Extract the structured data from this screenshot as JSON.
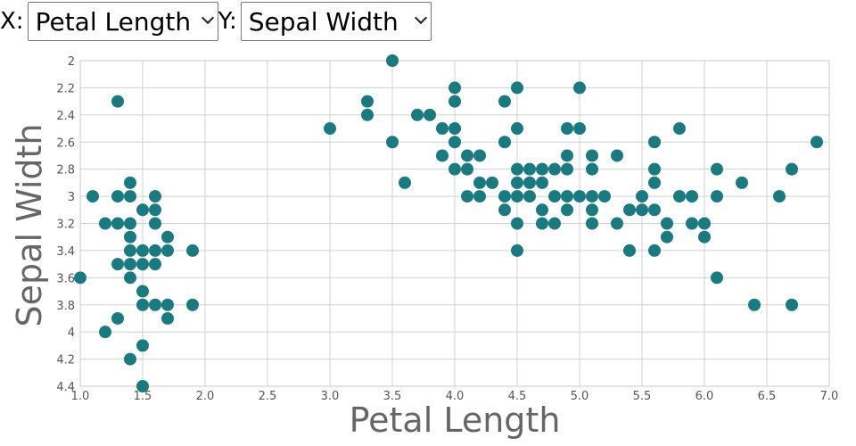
{
  "controls": {
    "x_label": "X:",
    "x_selected": "Petal Length",
    "y_label": "Y:",
    "y_selected": "Sepal Width"
  },
  "chart_data": {
    "type": "scatter",
    "xlabel": "Petal Length",
    "ylabel": "Sepal Width",
    "xlim": [
      1.0,
      7.0
    ],
    "ylim": [
      2.0,
      4.4
    ],
    "y_inverted": true,
    "grid": true,
    "point_color": "#1a7a80",
    "x_ticks": [
      "1.0",
      "1.5",
      "2.0",
      "2.5",
      "3.0",
      "3.5",
      "4.0",
      "4.5",
      "5.0",
      "5.5",
      "6.0",
      "6.5",
      "7.0"
    ],
    "y_ticks": [
      "2",
      "2.2",
      "2.4",
      "2.6",
      "2.8",
      "3",
      "3.2",
      "3.4",
      "3.6",
      "3.8",
      "4",
      "4.2",
      "4.4"
    ],
    "points": [
      [
        1.0,
        3.6
      ],
      [
        1.1,
        3.0
      ],
      [
        1.2,
        3.2
      ],
      [
        1.2,
        4.0
      ],
      [
        1.3,
        2.3
      ],
      [
        1.3,
        3.0
      ],
      [
        1.3,
        3.2
      ],
      [
        1.3,
        3.5
      ],
      [
        1.3,
        3.9
      ],
      [
        1.4,
        2.9
      ],
      [
        1.4,
        3.0
      ],
      [
        1.4,
        3.2
      ],
      [
        1.4,
        3.3
      ],
      [
        1.4,
        3.4
      ],
      [
        1.4,
        3.5
      ],
      [
        1.4,
        3.6
      ],
      [
        1.4,
        4.2
      ],
      [
        1.5,
        3.1
      ],
      [
        1.5,
        3.4
      ],
      [
        1.5,
        3.5
      ],
      [
        1.5,
        3.7
      ],
      [
        1.5,
        3.8
      ],
      [
        1.5,
        4.1
      ],
      [
        1.5,
        4.4
      ],
      [
        1.6,
        3.0
      ],
      [
        1.6,
        3.1
      ],
      [
        1.6,
        3.2
      ],
      [
        1.6,
        3.4
      ],
      [
        1.6,
        3.5
      ],
      [
        1.6,
        3.8
      ],
      [
        1.7,
        3.3
      ],
      [
        1.7,
        3.4
      ],
      [
        1.7,
        3.8
      ],
      [
        1.7,
        3.9
      ],
      [
        1.9,
        3.4
      ],
      [
        1.9,
        3.8
      ],
      [
        3.0,
        2.5
      ],
      [
        3.3,
        2.3
      ],
      [
        3.3,
        2.4
      ],
      [
        3.5,
        2.0
      ],
      [
        3.5,
        2.6
      ],
      [
        3.6,
        2.9
      ],
      [
        3.7,
        2.4
      ],
      [
        3.8,
        2.4
      ],
      [
        3.9,
        2.5
      ],
      [
        3.9,
        2.7
      ],
      [
        4.0,
        2.2
      ],
      [
        4.0,
        2.3
      ],
      [
        4.0,
        2.5
      ],
      [
        4.0,
        2.6
      ],
      [
        4.0,
        2.8
      ],
      [
        4.1,
        2.7
      ],
      [
        4.1,
        2.8
      ],
      [
        4.1,
        3.0
      ],
      [
        4.2,
        2.7
      ],
      [
        4.2,
        2.9
      ],
      [
        4.2,
        3.0
      ],
      [
        4.3,
        2.9
      ],
      [
        4.4,
        2.3
      ],
      [
        4.4,
        2.6
      ],
      [
        4.4,
        3.0
      ],
      [
        4.4,
        3.1
      ],
      [
        4.5,
        2.2
      ],
      [
        4.5,
        2.5
      ],
      [
        4.5,
        2.8
      ],
      [
        4.5,
        2.9
      ],
      [
        4.5,
        3.0
      ],
      [
        4.5,
        3.2
      ],
      [
        4.5,
        3.4
      ],
      [
        4.6,
        2.8
      ],
      [
        4.6,
        2.9
      ],
      [
        4.6,
        3.0
      ],
      [
        4.7,
        2.8
      ],
      [
        4.7,
        3.1
      ],
      [
        4.7,
        3.2
      ],
      [
        4.7,
        2.9
      ],
      [
        4.8,
        2.8
      ],
      [
        4.8,
        3.0
      ],
      [
        4.8,
        3.2
      ],
      [
        4.9,
        2.5
      ],
      [
        4.9,
        2.7
      ],
      [
        4.9,
        2.8
      ],
      [
        4.9,
        3.0
      ],
      [
        4.9,
        3.1
      ],
      [
        5.0,
        2.2
      ],
      [
        5.0,
        2.5
      ],
      [
        5.0,
        3.0
      ],
      [
        5.1,
        2.7
      ],
      [
        5.1,
        2.8
      ],
      [
        5.1,
        3.0
      ],
      [
        5.1,
        3.1
      ],
      [
        5.1,
        3.2
      ],
      [
        5.2,
        3.0
      ],
      [
        5.3,
        2.7
      ],
      [
        5.3,
        3.2
      ],
      [
        5.4,
        3.1
      ],
      [
        5.4,
        3.4
      ],
      [
        5.5,
        3.0
      ],
      [
        5.5,
        3.1
      ],
      [
        5.6,
        2.6
      ],
      [
        5.6,
        2.8
      ],
      [
        5.6,
        2.9
      ],
      [
        5.6,
        3.1
      ],
      [
        5.6,
        3.4
      ],
      [
        5.7,
        3.2
      ],
      [
        5.7,
        3.3
      ],
      [
        5.8,
        2.5
      ],
      [
        5.8,
        3.0
      ],
      [
        5.9,
        3.0
      ],
      [
        5.9,
        3.2
      ],
      [
        6.0,
        3.2
      ],
      [
        6.0,
        3.3
      ],
      [
        6.1,
        2.8
      ],
      [
        6.1,
        3.0
      ],
      [
        6.1,
        3.6
      ],
      [
        6.3,
        2.9
      ],
      [
        6.4,
        3.8
      ],
      [
        6.6,
        3.0
      ],
      [
        6.7,
        2.8
      ],
      [
        6.7,
        3.8
      ],
      [
        6.9,
        2.6
      ]
    ]
  }
}
